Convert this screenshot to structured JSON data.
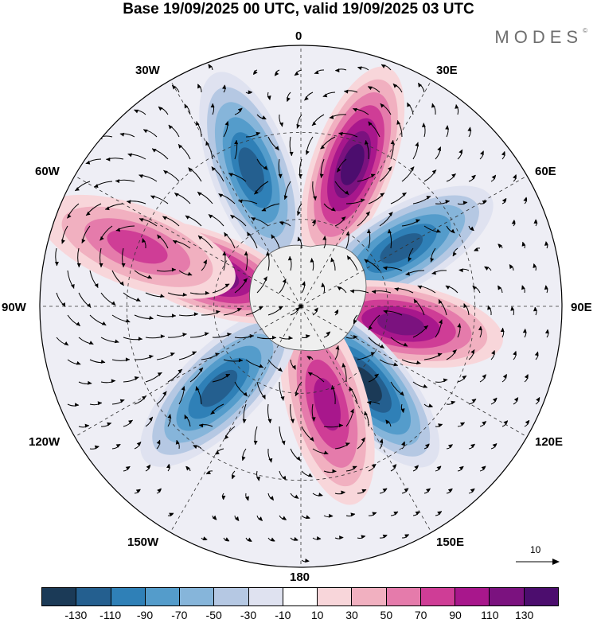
{
  "title": "Base 19/09/2025 00 UTC, valid 19/09/2025 03 UTC",
  "brand": {
    "name": "MODES",
    "mark": "©"
  },
  "longitude_labels": {
    "lon_0": "0",
    "lon_30e": "30E",
    "lon_60e": "60E",
    "lon_90e": "90E",
    "lon_120e": "120E",
    "lon_150e": "150E",
    "lon_180": "180",
    "lon_150w": "150W",
    "lon_120w": "120W",
    "lon_90w": "90W",
    "lon_60w": "60W",
    "lon_30w": "30W"
  },
  "reference_vector": {
    "label": "10"
  },
  "colorbar": {
    "ticks": [
      "-130",
      "-110",
      "-90",
      "-70",
      "-50",
      "-30",
      "-10",
      "10",
      "30",
      "50",
      "70",
      "90",
      "110",
      "130"
    ],
    "colors": [
      "#1b3a57",
      "#245f8f",
      "#2f80b7",
      "#549ccb",
      "#86b5da",
      "#b5c8e3",
      "#dfe2f0",
      "#ffffff",
      "#f8d6da",
      "#f1b0c0",
      "#e57bab",
      "#cf3d96",
      "#a8178c",
      "#7b127f",
      "#4c0d6e"
    ]
  },
  "map_features": {
    "anomaly_centers": [
      {
        "sign": "negative",
        "lon": -20,
        "lat": 40,
        "strength": -120
      },
      {
        "sign": "positive",
        "lon": 20,
        "lat": 38,
        "strength": 130
      },
      {
        "sign": "negative",
        "lon": 60,
        "lat": 50,
        "strength": -115
      },
      {
        "sign": "positive",
        "lon": 100,
        "lat": 55,
        "strength": 120
      },
      {
        "sign": "negative",
        "lon": 140,
        "lat": 55,
        "strength": -130
      },
      {
        "sign": "positive",
        "lon": 165,
        "lat": 55,
        "strength": 105
      },
      {
        "sign": "negative",
        "lon": -135,
        "lat": 50,
        "strength": -125
      },
      {
        "sign": "positive",
        "lon": -70,
        "lat": 55,
        "strength": 130
      },
      {
        "sign": "positive",
        "lon": -70,
        "lat": 30,
        "strength": 75
      }
    ]
  }
}
